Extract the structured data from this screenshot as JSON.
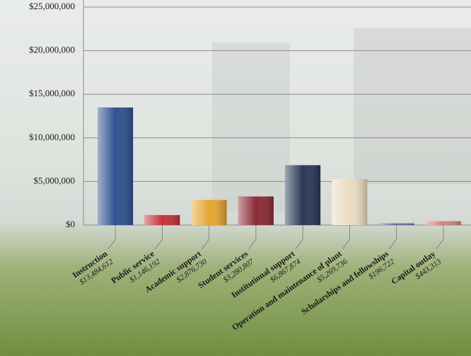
{
  "chart_data": {
    "type": "bar",
    "categories": [
      "Instruction",
      "Public service",
      "Academic support",
      "Student services",
      "Institutional support",
      "Operation and maintenance of plant",
      "Scholarships and fellowships",
      "Capital outlay"
    ],
    "values": [
      13484612,
      1146192,
      2876730,
      3280807,
      6867874,
      5269736,
      196722,
      443313
    ],
    "value_labels": [
      "$13,484,612",
      "$1,146,192",
      "$2,876,730",
      "$3,280,807",
      "$6,867,874",
      "$5,269,736",
      "$196,722",
      "$443,313"
    ],
    "colors": [
      "#2f5190",
      "#c4313e",
      "#e6a533",
      "#8c2b36",
      "#2b3758",
      "#e9dcc0",
      "#6373a6",
      "#d3837b"
    ],
    "ylim": [
      0,
      25000000
    ],
    "yticks": [
      {
        "value": 0,
        "label": "$0"
      },
      {
        "value": 5000000,
        "label": "$5,000,000"
      },
      {
        "value": 10000000,
        "label": "$10,000,000"
      },
      {
        "value": 15000000,
        "label": "$15,000,000"
      },
      {
        "value": 20000000,
        "label": "$20,000,000"
      },
      {
        "value": 25000000,
        "label": "$25,000,000"
      }
    ],
    "grid": true
  }
}
